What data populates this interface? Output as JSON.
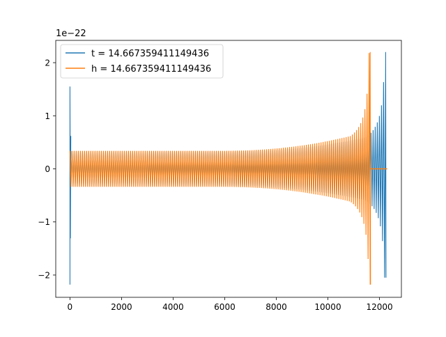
{
  "chart_data": {
    "type": "line",
    "title": "",
    "xlabel": "",
    "ylabel": "",
    "y_offset_label": "1e−22",
    "xlim": [
      -550,
      12850
    ],
    "ylim": [
      -2.42,
      2.42
    ],
    "xticks": [
      {
        "value": 0,
        "label": "0"
      },
      {
        "value": 2000,
        "label": "2000"
      },
      {
        "value": 4000,
        "label": "4000"
      },
      {
        "value": 6000,
        "label": "6000"
      },
      {
        "value": 8000,
        "label": "8000"
      },
      {
        "value": 10000,
        "label": "10000"
      },
      {
        "value": 12000,
        "label": "12000"
      }
    ],
    "yticks": [
      {
        "value": -2,
        "label": "−2"
      },
      {
        "value": -1,
        "label": "−1"
      },
      {
        "value": 0,
        "label": "0"
      },
      {
        "value": 1,
        "label": "1"
      },
      {
        "value": 2,
        "label": "2"
      }
    ],
    "grid": false,
    "legend_position": "upper-left",
    "series": [
      {
        "name": "t = 14.667359411149436",
        "color": "#1f77b4",
        "kind": "chirp",
        "start": 0,
        "merger": 12240,
        "end": 12300,
        "start_spike_min": -2.18,
        "start_spike_max": 1.55,
        "base_amplitude": 0.33,
        "late_amplitude": 0.68,
        "peak_min": -2.05,
        "peak_max": 2.2
      },
      {
        "name": "h = 14.667359411149436",
        "color": "#ff7f0e",
        "kind": "chirp",
        "start": 0,
        "merger": 11640,
        "end": 12300,
        "base_amplitude": 0.34,
        "late_amplitude": 0.72,
        "peak_min": -2.18,
        "peak_max": 2.2,
        "tail_value": 0
      }
    ]
  }
}
